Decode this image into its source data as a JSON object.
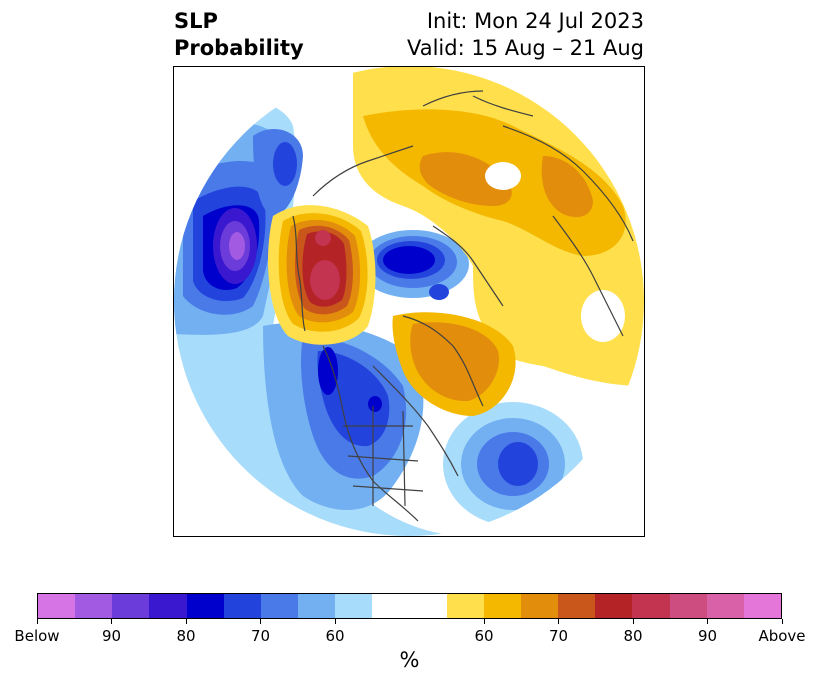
{
  "title": {
    "left_line1": "SLP",
    "left_line2": "Probability",
    "right_line1": "Init: Mon 24 Jul 2023",
    "right_line2": "Valid: 15 Aug – 21 Aug"
  },
  "colorbar": {
    "unit": "%",
    "below_colors": [
      "#d674e6",
      "#a15ae1",
      "#6b3cd9",
      "#3a18cf",
      "#0000cc",
      "#2244dd",
      "#4a7ae8",
      "#72b0f2",
      "#a8dcfb"
    ],
    "neutral_color": "#ffffff",
    "above_colors": [
      "#ffe04c",
      "#f4b800",
      "#e28d0c",
      "#c9561b",
      "#b42326",
      "#c2344f",
      "#cd4d80",
      "#d861a8",
      "#e576d9"
    ],
    "tick_labels": [
      "Below",
      "90",
      "80",
      "70",
      "60",
      "60",
      "70",
      "80",
      "90",
      "Above"
    ]
  }
}
